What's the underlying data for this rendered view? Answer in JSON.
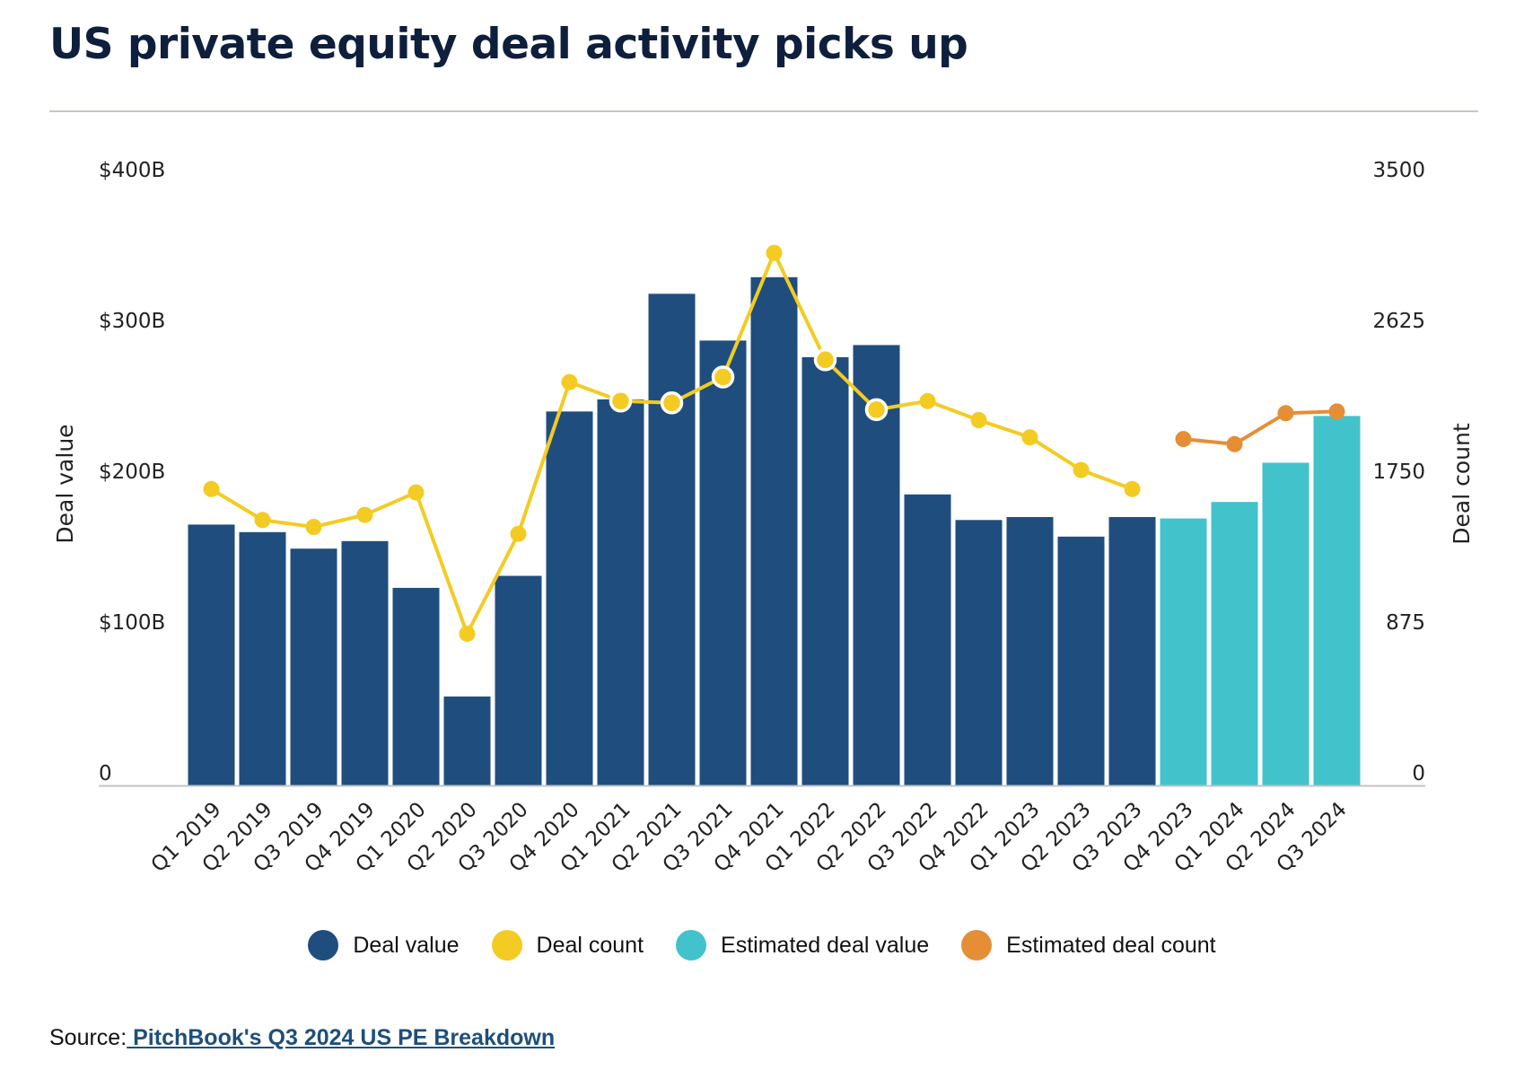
{
  "title": "US private equity deal activity picks up",
  "source": {
    "prefix": "Source:",
    "link_text": " PitchBook's Q3 2024 US PE Breakdown"
  },
  "legend": [
    {
      "label": "Deal value",
      "color": "#1f4e7e"
    },
    {
      "label": "Deal count",
      "color": "#f3cb22"
    },
    {
      "label": "Estimated deal value",
      "color": "#42c2cb"
    },
    {
      "label": "Estimated deal count",
      "color": "#e58e36"
    }
  ],
  "chart_data": {
    "type": "bar",
    "categories": [
      "Q1 2019",
      "Q2 2019",
      "Q3 2019",
      "Q4 2019",
      "Q1 2020",
      "Q2 2020",
      "Q3 2020",
      "Q4 2020",
      "Q1 2021",
      "Q2 2021",
      "Q3 2021",
      "Q4 2021",
      "Q1 2022",
      "Q2 2022",
      "Q3 2022",
      "Q4 2022",
      "Q1 2023",
      "Q2 2023",
      "Q3 2023",
      "Q4 2023",
      "Q1 2024",
      "Q2 2024",
      "Q3 2024"
    ],
    "ylabel": "Deal value",
    "y2label": "Deal count",
    "ylim": [
      0,
      400
    ],
    "y2lim": [
      0,
      3500
    ],
    "yticks": [
      "0",
      "$100B",
      "$200B",
      "$300B",
      "$400B"
    ],
    "y2ticks": [
      "0",
      "875",
      "1750",
      "2625",
      "3500"
    ],
    "grid": false,
    "legend_position": "bottom",
    "series": [
      {
        "name": "Deal value",
        "kind": "bar",
        "axis": "left",
        "color": "#1f4e7e",
        "values": [
          173,
          168,
          157,
          162,
          131,
          59,
          139,
          248,
          256,
          326,
          295,
          337,
          284,
          292,
          193,
          176,
          178,
          165,
          178,
          null,
          null,
          null,
          null
        ]
      },
      {
        "name": "Estimated deal value",
        "kind": "bar",
        "axis": "left",
        "color": "#42c2cb",
        "values": [
          null,
          null,
          null,
          null,
          null,
          null,
          null,
          null,
          null,
          null,
          null,
          null,
          null,
          null,
          null,
          null,
          null,
          null,
          null,
          177,
          188,
          214,
          245
        ]
      },
      {
        "name": "Deal count",
        "kind": "line",
        "axis": "right",
        "color": "#f3cb22",
        "values": [
          1720,
          1540,
          1500,
          1570,
          1700,
          880,
          1460,
          2340,
          2230,
          2220,
          2370,
          3090,
          2470,
          2180,
          2230,
          2120,
          2020,
          1830,
          1720,
          null,
          null,
          null,
          null
        ],
        "white_outline_points": [
          8,
          9,
          10,
          12,
          13
        ]
      },
      {
        "name": "Estimated deal count",
        "kind": "line",
        "axis": "right",
        "color": "#e58e36",
        "values": [
          null,
          null,
          null,
          null,
          null,
          null,
          null,
          null,
          null,
          null,
          null,
          null,
          null,
          null,
          null,
          null,
          null,
          null,
          null,
          2010,
          1980,
          2160,
          2170
        ]
      }
    ]
  }
}
